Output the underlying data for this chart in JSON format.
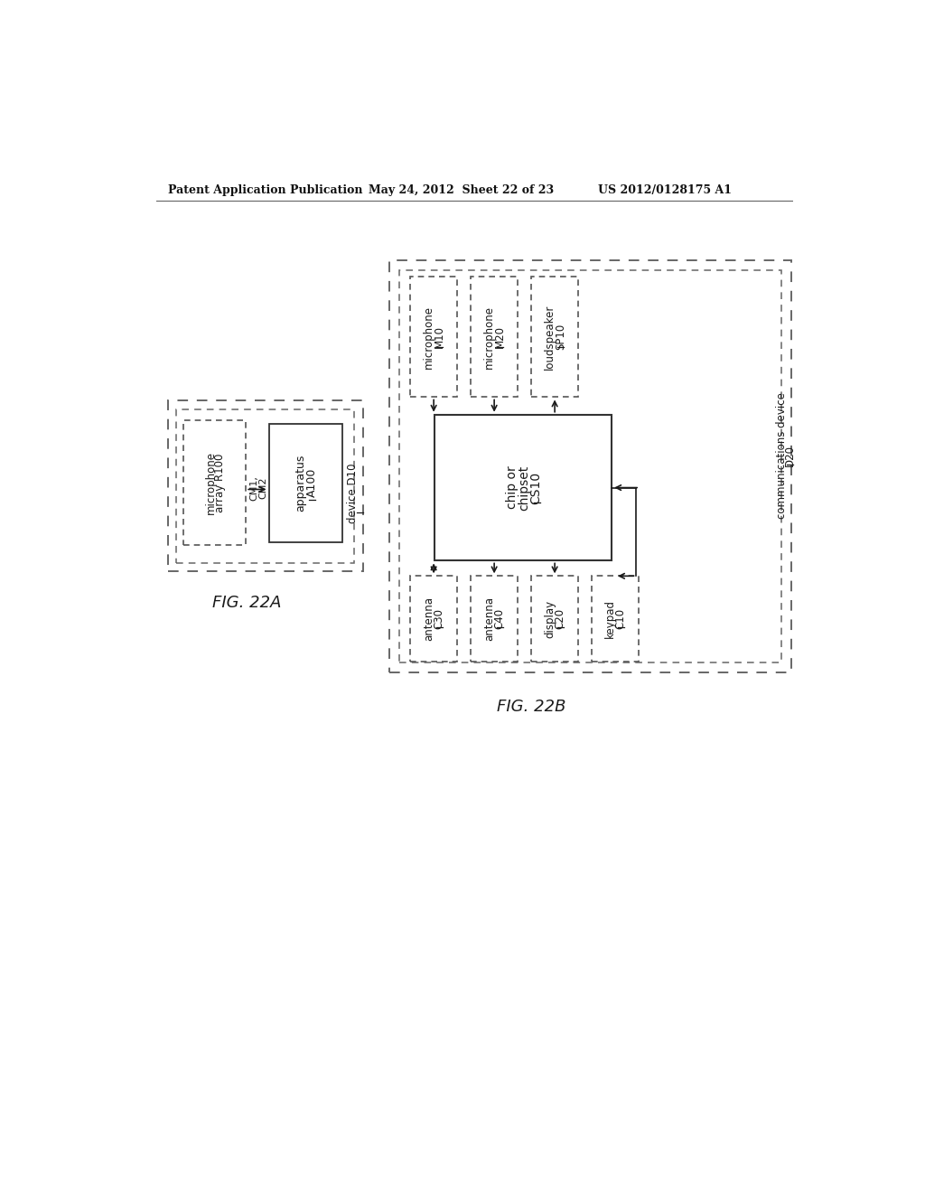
{
  "header_left": "Patent Application Publication",
  "header_mid": "May 24, 2012  Sheet 22 of 23",
  "header_right": "US 2012/0128175 A1",
  "fig22a_label": "FIG. 22A",
  "fig22b_label": "FIG. 22B",
  "background": "#ffffff",
  "text_color": "#1a1a1a",
  "box_color": "#333333",
  "dash_color": "#666666"
}
